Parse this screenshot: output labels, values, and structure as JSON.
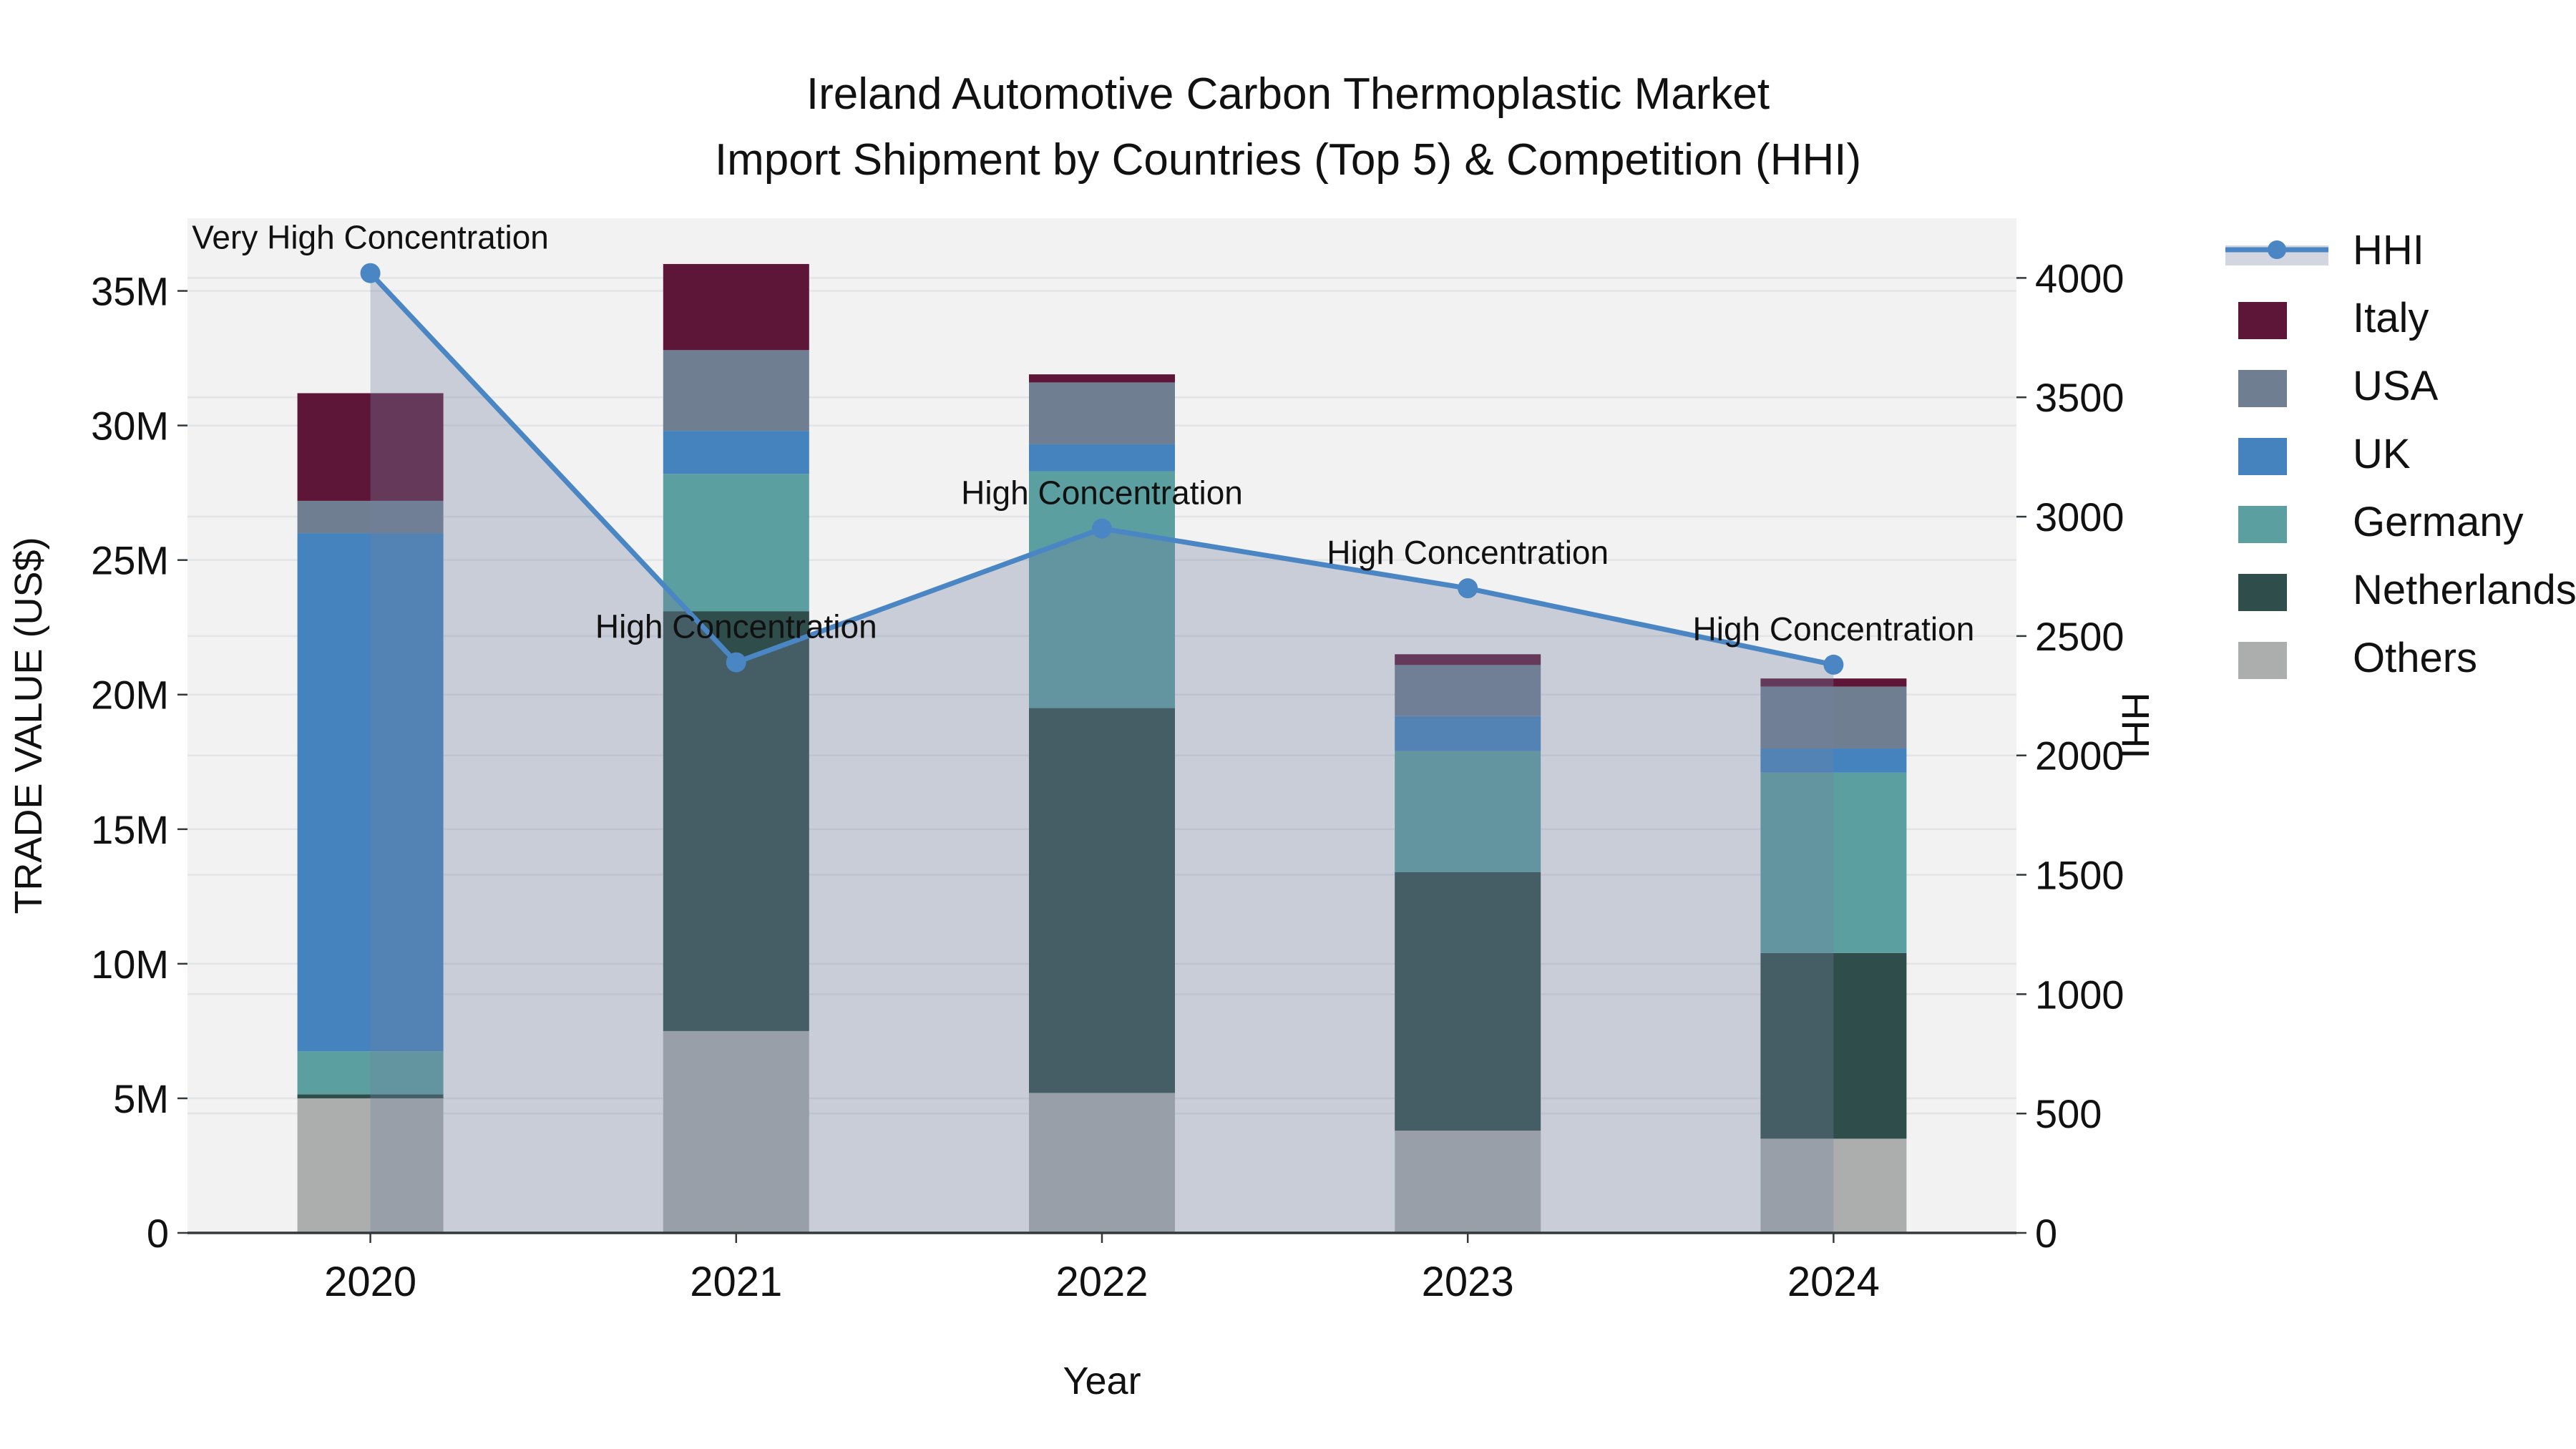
{
  "title": {
    "line1": "Ireland Automotive Carbon Thermoplastic Market",
    "line2": "Import Shipment by Countries (Top 5) & Competition (HHI)"
  },
  "axes": {
    "left_label": "TRADE VALUE (US$)",
    "right_label": "HHI",
    "x_label": "Year",
    "left_ticks": [
      {
        "value": 0,
        "label": "0"
      },
      {
        "value": 5,
        "label": "5M"
      },
      {
        "value": 10,
        "label": "10M"
      },
      {
        "value": 15,
        "label": "15M"
      },
      {
        "value": 20,
        "label": "20M"
      },
      {
        "value": 25,
        "label": "25M"
      },
      {
        "value": 30,
        "label": "30M"
      },
      {
        "value": 35,
        "label": "35M"
      }
    ],
    "right_ticks": [
      {
        "value": 0,
        "label": "0"
      },
      {
        "value": 500,
        "label": "500"
      },
      {
        "value": 1000,
        "label": "1000"
      },
      {
        "value": 1500,
        "label": "1500"
      },
      {
        "value": 2000,
        "label": "2000"
      },
      {
        "value": 2500,
        "label": "2500"
      },
      {
        "value": 3000,
        "label": "3000"
      },
      {
        "value": 3500,
        "label": "3500"
      },
      {
        "value": 4000,
        "label": "4000"
      }
    ]
  },
  "legend": {
    "items": [
      {
        "label": "HHI",
        "type": "line"
      },
      {
        "label": "Italy",
        "type": "swatch"
      },
      {
        "label": "USA",
        "type": "swatch"
      },
      {
        "label": "UK",
        "type": "swatch"
      },
      {
        "label": "Germany",
        "type": "swatch"
      },
      {
        "label": "Netherlands",
        "type": "swatch"
      },
      {
        "label": "Others",
        "type": "swatch"
      }
    ]
  },
  "chart_data": {
    "type": "bar+line",
    "title": "Ireland Automotive Carbon Thermoplastic Market — Import Shipment by Countries (Top 5) & Competition (HHI)",
    "categories": [
      "2020",
      "2021",
      "2022",
      "2023",
      "2024"
    ],
    "values_unit": "million US$",
    "series": [
      {
        "name": "Others",
        "color": "#acaeae",
        "values": [
          5.0,
          7.5,
          5.2,
          3.8,
          3.5
        ]
      },
      {
        "name": "Netherlands",
        "color": "#2f4d4a",
        "values": [
          0.15,
          15.6,
          14.3,
          9.6,
          6.9
        ]
      },
      {
        "name": "Germany",
        "color": "#5c9fa1",
        "values": [
          1.6,
          5.1,
          8.8,
          4.5,
          6.7
        ]
      },
      {
        "name": "UK",
        "color": "#4483be",
        "values": [
          19.25,
          1.6,
          1.0,
          1.3,
          0.9
        ]
      },
      {
        "name": "USA",
        "color": "#6f7e91",
        "values": [
          1.2,
          3.0,
          2.3,
          1.9,
          2.3
        ]
      },
      {
        "name": "Italy",
        "color": "#5e1638",
        "values": [
          4.0,
          3.2,
          0.3,
          0.4,
          0.3
        ]
      }
    ],
    "bar_totals": [
      31.2,
      36.0,
      31.9,
      21.5,
      20.6
    ],
    "line_series": {
      "name": "HHI",
      "color": "#4a86c4",
      "area_fill": "rgba(116,131,160,0.33)",
      "values": [
        4020,
        2390,
        2950,
        2700,
        2380
      ]
    },
    "annotations": [
      "Very High Concentration",
      "High Concentration",
      "High Concentration",
      "High Concentration",
      "High Concentration"
    ],
    "xlabel": "Year",
    "ylabel_left": "TRADE VALUE (US$)",
    "ylabel_right": "HHI",
    "ylim_left": [
      0,
      37.7
    ],
    "ylim_right": [
      0,
      4250
    ],
    "grid": true,
    "legend_position": "right",
    "plot_bg": "#f2f2f2",
    "grid_color": "#e3e4e6",
    "spine_color": "#33383b"
  }
}
